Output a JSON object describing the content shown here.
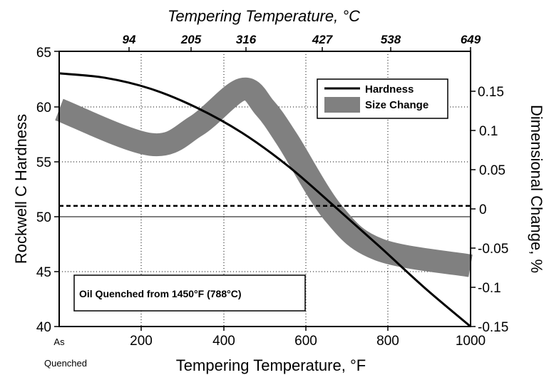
{
  "chart_data": {
    "type": "line",
    "x_axis": {
      "label": "Tempering Temperature, °F",
      "ticks": [
        "200",
        "400",
        "600",
        "800",
        "1000"
      ],
      "as_quenched_label_1": "As",
      "as_quenched_label_2": "Quenched",
      "range": [
        100,
        1000
      ]
    },
    "x2_axis": {
      "label": "Tempering Temperature, °C",
      "ticks": [
        "94",
        "205",
        "316",
        "427",
        "538",
        "649"
      ]
    },
    "y_axis": {
      "label": "Rockwell C Hardness",
      "ticks": [
        "40",
        "45",
        "50",
        "55",
        "60",
        "65"
      ],
      "range": [
        40,
        65
      ]
    },
    "y2_axis": {
      "label": "Dimensional Change, %",
      "ticks": [
        "-0.15",
        "-0.1",
        "-0.05",
        "0",
        "0.05",
        "0.1",
        "0.15"
      ],
      "range": [
        -0.15,
        0.19
      ]
    },
    "legend": {
      "position": "top-right",
      "hardness": "Hardness",
      "size_change": "Size Change"
    },
    "annotation": "Oil Quenched from 1450°F (788°C)",
    "grid": true,
    "series": [
      {
        "name": "Hardness",
        "axis": "left",
        "color": "#000000",
        "x": [
          100,
          200,
          300,
          400,
          500,
          600,
          700,
          800,
          900,
          1000
        ],
        "y": [
          63.0,
          62.6,
          61.6,
          59.9,
          57.6,
          54.6,
          51.0,
          47.3,
          43.5,
          40.0
        ]
      },
      {
        "name": "Size Change",
        "axis": "right",
        "color": "#808080",
        "x": [
          100,
          300,
          400,
          500,
          550,
          600,
          700,
          800,
          1000
        ],
        "y": [
          0.118,
          0.075,
          0.098,
          0.143,
          0.12,
          0.08,
          -0.01,
          -0.055,
          -0.075
        ]
      },
      {
        "name": "zero",
        "axis": "right",
        "style": "dashed",
        "color": "#000000",
        "x": [
          100,
          1000
        ],
        "y": [
          0.0,
          0.0
        ]
      }
    ]
  }
}
